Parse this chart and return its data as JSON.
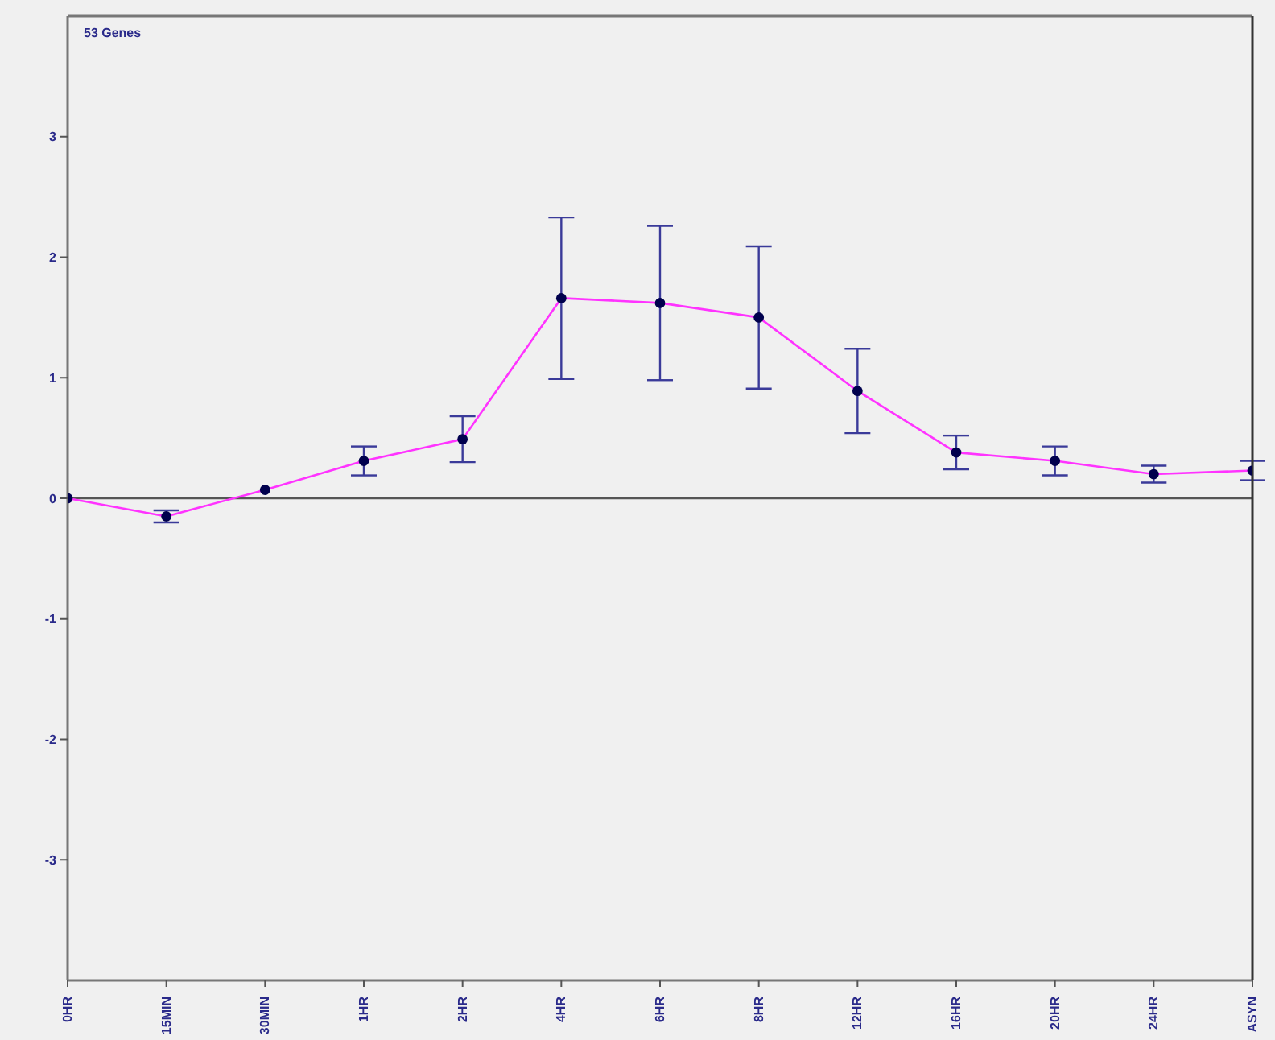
{
  "chart_data": {
    "type": "line",
    "title": "53 Genes",
    "categories": [
      "0HR",
      "15MIN",
      "30MIN",
      "1HR",
      "2HR",
      "4HR",
      "6HR",
      "8HR",
      "12HR",
      "16HR",
      "20HR",
      "24HR",
      "ASYN"
    ],
    "series": [
      {
        "color": "#ff33ff",
        "values": [
          0,
          -0.15,
          0.07,
          0.31,
          0.49,
          1.66,
          1.62,
          1.5,
          0.89,
          0.38,
          0.31,
          0.2,
          0.23
        ],
        "errors": [
          null,
          0.05,
          null,
          0.12,
          0.19,
          0.67,
          0.64,
          0.59,
          0.35,
          0.14,
          0.12,
          0.07,
          0.08
        ]
      }
    ],
    "ylim": [
      -4,
      4
    ],
    "yticks": [
      -3,
      -2,
      -1,
      0,
      1,
      2,
      3
    ],
    "ref_lines": [
      {
        "axis": "y",
        "value": 0,
        "color": "#555555"
      }
    ],
    "marker": "circle",
    "grid": false
  }
}
